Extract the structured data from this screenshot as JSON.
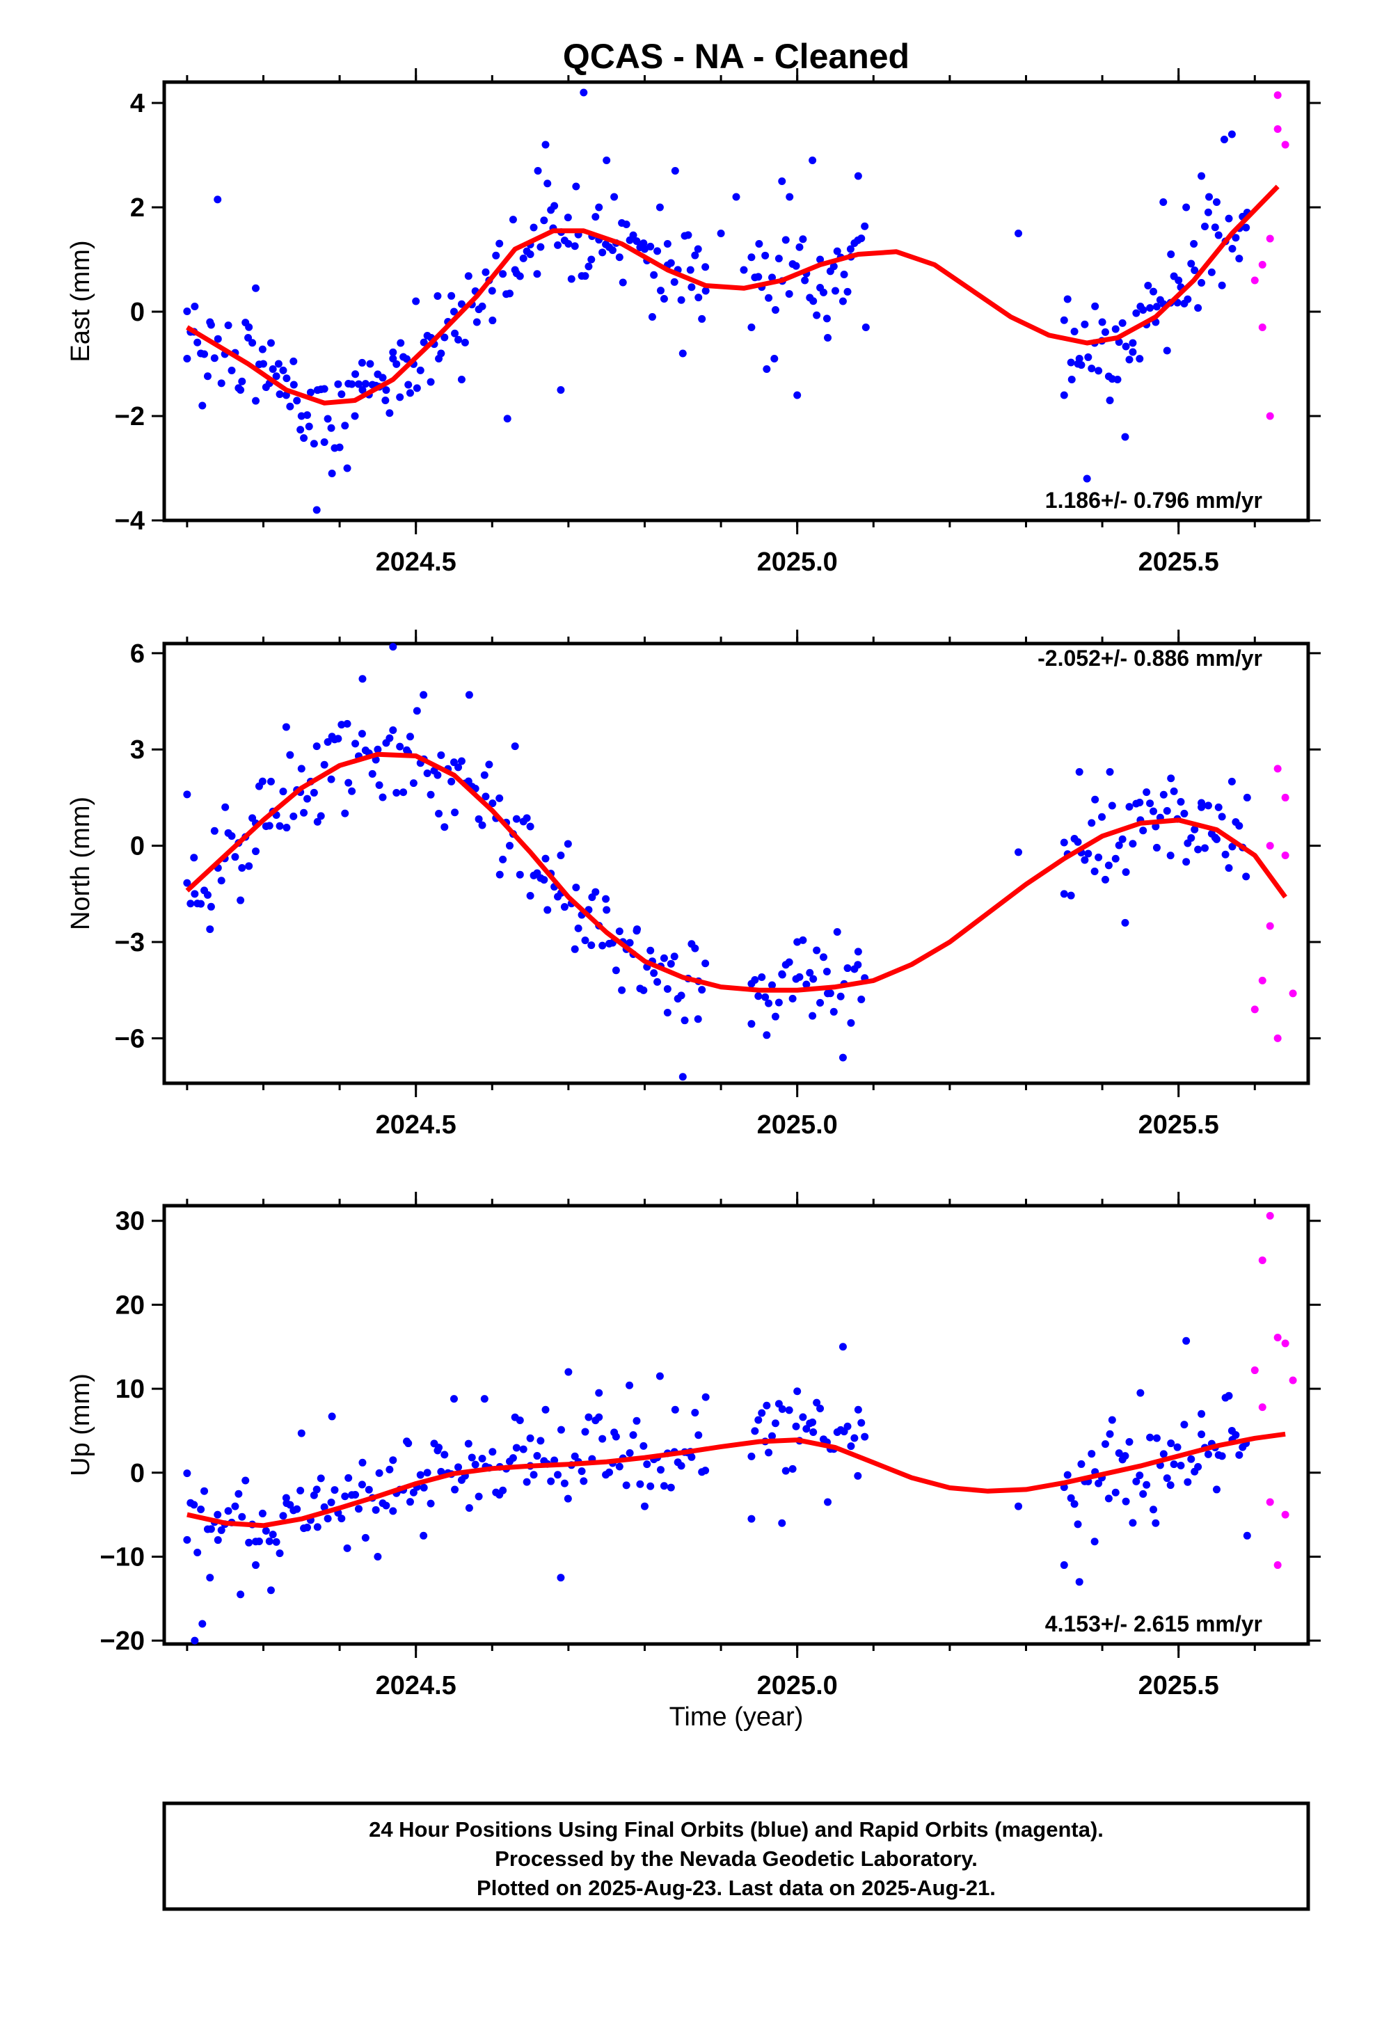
{
  "title": "QCAS  - NA - Cleaned",
  "colors": {
    "final": "#0000ff",
    "rapid": "#ff00ff",
    "fit": "#ff0000",
    "frame": "#000000"
  },
  "chart_data": [
    {
      "type": "scatter",
      "name": "east",
      "ylabel": "East (mm)",
      "xlabel": "",
      "xlim": [
        2024.17,
        2025.67
      ],
      "ylim": [
        -4,
        4.4
      ],
      "xticks": [
        2024.5,
        2025.0,
        2025.5
      ],
      "xtick_labels": [
        "2024.5",
        "2025.0",
        "2025.5"
      ],
      "yticks": [
        -4,
        -2,
        0,
        2,
        4
      ],
      "ytick_labels": [
        "−4",
        "−2",
        "0",
        "2",
        "4"
      ],
      "rate_text": "1.186+/- 0.796 mm/yr",
      "rate_position": "bottom-right",
      "fit": {
        "x": [
          2024.2,
          2024.28,
          2024.33,
          2024.38,
          2024.42,
          2024.47,
          2024.52,
          2024.58,
          2024.63,
          2024.68,
          2024.72,
          2024.77,
          2024.83,
          2024.88,
          2024.93,
          2024.98,
          2025.03,
          2025.08,
          2025.13,
          2025.18,
          2025.23,
          2025.28,
          2025.33,
          2025.38,
          2025.42,
          2025.47,
          2025.52,
          2025.57,
          2025.63
        ],
        "y": [
          -0.3,
          -1.0,
          -1.5,
          -1.75,
          -1.7,
          -1.3,
          -0.6,
          0.3,
          1.2,
          1.55,
          1.55,
          1.3,
          0.8,
          0.5,
          0.45,
          0.6,
          0.9,
          1.1,
          1.15,
          0.9,
          0.4,
          -0.1,
          -0.45,
          -0.6,
          -0.5,
          -0.1,
          0.6,
          1.5,
          2.4
        ]
      },
      "final_points": {
        "x": [
          2024.2,
          2024.21,
          2024.22,
          2024.23,
          2024.24,
          2024.27,
          2024.28,
          2024.29,
          2024.3,
          2024.31,
          2024.32,
          2024.33,
          2024.34,
          2024.35,
          2024.36,
          2024.37,
          2024.38,
          2024.39,
          2024.4,
          2024.41,
          2024.42,
          2024.43,
          2024.44,
          2024.45,
          2024.46,
          2024.47,
          2024.48,
          2024.49,
          2024.5,
          2024.52,
          2024.53,
          2024.55,
          2024.56,
          2024.58,
          2024.6,
          2024.62,
          2024.63,
          2024.65,
          2024.66,
          2024.67,
          2024.68,
          2024.69,
          2024.7,
          2024.71,
          2024.72,
          2024.73,
          2024.74,
          2024.75,
          2024.76,
          2024.77,
          2024.8,
          2024.81,
          2024.82,
          2024.83,
          2024.84,
          2024.85,
          2024.86,
          2024.87,
          2024.88,
          2024.9,
          2024.92,
          2024.93,
          2024.94,
          2024.95,
          2024.96,
          2024.97,
          2024.98,
          2024.99,
          2025.0,
          2025.01,
          2025.02,
          2025.03,
          2025.04,
          2025.05,
          2025.06,
          2025.07,
          2025.08,
          2025.09,
          2025.29,
          2025.35,
          2025.36,
          2025.37,
          2025.38,
          2025.39,
          2025.4,
          2025.41,
          2025.42,
          2025.43,
          2025.44,
          2025.45,
          2025.46,
          2025.47,
          2025.48,
          2025.49,
          2025.5,
          2025.51,
          2025.52,
          2025.53,
          2025.54,
          2025.55,
          2025.56,
          2025.57,
          2025.58,
          2025.59
        ],
        "y": [
          -0.9,
          0.1,
          -1.8,
          -0.2,
          2.15,
          -1.5,
          -0.5,
          0.45,
          -1.0,
          -0.6,
          -1.0,
          -1.6,
          -1.4,
          -2.0,
          -2.2,
          -3.8,
          -2.5,
          -3.1,
          -2.6,
          -3.0,
          -2.0,
          -1.5,
          -1.0,
          -1.2,
          -1.7,
          -0.9,
          -0.6,
          -1.4,
          0.2,
          -0.5,
          -0.9,
          0.0,
          -1.3,
          -0.2,
          0.4,
          -2.05,
          0.8,
          1.1,
          2.7,
          3.2,
          1.6,
          -1.5,
          1.3,
          2.4,
          4.2,
          1.0,
          2.0,
          2.9,
          2.2,
          1.7,
          1.2,
          -0.1,
          2.0,
          1.3,
          2.7,
          -0.8,
          0.8,
          1.2,
          0.4,
          1.5,
          2.2,
          0.8,
          -0.3,
          1.3,
          -1.1,
          -0.9,
          2.5,
          2.2,
          -1.6,
          0.6,
          2.9,
          1.0,
          -0.5,
          0.4,
          0.2,
          1.2,
          2.6,
          -0.3,
          1.5,
          -1.6,
          -1.3,
          -0.9,
          -3.2,
          -0.6,
          -0.2,
          -1.7,
          -1.3,
          -2.4,
          -0.6,
          0.1,
          0.5,
          -0.2,
          2.1,
          1.1,
          0.6,
          2.0,
          1.3,
          2.6,
          2.2,
          2.1,
          3.3,
          3.4,
          1.6,
          1.9
        ],
        "sparse": true
      },
      "rapid_points": {
        "x": [
          2025.6,
          2025.61,
          2025.61,
          2025.62,
          2025.62,
          2025.63,
          2025.63,
          2025.64
        ],
        "y": [
          0.6,
          0.9,
          -0.3,
          -2.0,
          1.4,
          4.15,
          3.5,
          3.2
        ]
      }
    },
    {
      "type": "scatter",
      "name": "north",
      "ylabel": "North (mm)",
      "xlabel": "",
      "xlim": [
        2024.17,
        2025.67
      ],
      "ylim": [
        -7.4,
        6.3
      ],
      "xticks": [
        2024.5,
        2025.0,
        2025.5
      ],
      "xtick_labels": [
        "2024.5",
        "2025.0",
        "2025.5"
      ],
      "yticks": [
        -6,
        -3,
        0,
        3,
        6
      ],
      "ytick_labels": [
        "−6",
        "−3",
        "0",
        "3",
        "6"
      ],
      "rate_text": "-2.052+/- 0.886 mm/yr",
      "rate_position": "top-right",
      "fit": {
        "x": [
          2024.2,
          2024.25,
          2024.3,
          2024.35,
          2024.4,
          2024.45,
          2024.5,
          2024.55,
          2024.6,
          2024.65,
          2024.7,
          2024.75,
          2024.8,
          2024.85,
          2024.9,
          2024.95,
          2025.0,
          2025.05,
          2025.1,
          2025.15,
          2025.2,
          2025.25,
          2025.3,
          2025.35,
          2025.4,
          2025.45,
          2025.5,
          2025.55,
          2025.6,
          2025.64
        ],
        "y": [
          -1.4,
          -0.3,
          0.8,
          1.8,
          2.5,
          2.85,
          2.8,
          2.2,
          1.1,
          -0.2,
          -1.6,
          -2.7,
          -3.6,
          -4.1,
          -4.4,
          -4.5,
          -4.5,
          -4.4,
          -4.2,
          -3.7,
          -3.0,
          -2.1,
          -1.2,
          -0.4,
          0.3,
          0.7,
          0.8,
          0.5,
          -0.3,
          -1.6
        ]
      },
      "final_points": {
        "x": [
          2024.2,
          2024.21,
          2024.23,
          2024.25,
          2024.27,
          2024.29,
          2024.31,
          2024.33,
          2024.35,
          2024.37,
          2024.39,
          2024.41,
          2024.43,
          2024.45,
          2024.47,
          2024.49,
          2024.51,
          2024.53,
          2024.55,
          2024.57,
          2024.59,
          2024.61,
          2024.63,
          2024.65,
          2024.67,
          2024.69,
          2024.71,
          2024.73,
          2024.75,
          2024.77,
          2024.79,
          2024.81,
          2024.83,
          2024.85,
          2024.87,
          2024.94,
          2024.96,
          2024.98,
          2025.0,
          2025.02,
          2025.04,
          2025.06,
          2025.08,
          2025.29,
          2025.35,
          2025.37,
          2025.39,
          2025.41,
          2025.43,
          2025.45,
          2025.47,
          2025.49,
          2025.51,
          2025.53,
          2025.55,
          2025.57,
          2025.59
        ],
        "y": [
          1.6,
          -1.5,
          -2.6,
          1.2,
          -1.7,
          0.7,
          2.0,
          3.7,
          2.4,
          3.1,
          3.4,
          3.8,
          5.2,
          3.0,
          6.2,
          2.9,
          4.7,
          1.0,
          2.6,
          4.7,
          2.2,
          -0.9,
          3.1,
          0.6,
          -0.4,
          -0.3,
          -1.3,
          -3.1,
          -2.0,
          -4.5,
          -2.6,
          -3.6,
          -5.2,
          -7.2,
          -5.4,
          -4.3,
          -5.9,
          -4.0,
          -3.0,
          -5.3,
          -4.6,
          -6.6,
          -3.3,
          -0.2,
          0.1,
          2.3,
          -0.8,
          2.3,
          -2.4,
          0.8,
          0.6,
          2.1,
          -0.5,
          1.2,
          0.2,
          2.0,
          1.5
        ],
        "sparse": true
      },
      "rapid_points": {
        "x": [
          2025.6,
          2025.61,
          2025.62,
          2025.62,
          2025.63,
          2025.63,
          2025.64,
          2025.64,
          2025.65
        ],
        "y": [
          -5.1,
          -4.2,
          -2.5,
          0.0,
          2.4,
          -6.0,
          1.5,
          -0.3,
          -4.6
        ]
      }
    },
    {
      "type": "scatter",
      "name": "up",
      "ylabel": "Up (mm)",
      "xlabel": "Time (year)",
      "xlim": [
        2024.17,
        2025.67
      ],
      "ylim": [
        -20.4,
        31.8
      ],
      "xticks": [
        2024.5,
        2025.0,
        2025.5
      ],
      "xtick_labels": [
        "2024.5",
        "2025.0",
        "2025.5"
      ],
      "yticks": [
        -20,
        -10,
        0,
        10,
        20,
        30
      ],
      "ytick_labels": [
        "−20",
        "−10",
        "0",
        "10",
        "20",
        "30"
      ],
      "rate_text": "4.153+/- 2.615 mm/yr",
      "rate_position": "bottom-right",
      "fit": {
        "x": [
          2024.2,
          2024.25,
          2024.3,
          2024.35,
          2024.4,
          2024.45,
          2024.5,
          2024.55,
          2024.6,
          2024.65,
          2024.7,
          2024.75,
          2024.8,
          2024.85,
          2024.9,
          2024.95,
          2025.0,
          2025.05,
          2025.1,
          2025.15,
          2025.2,
          2025.25,
          2025.3,
          2025.35,
          2025.4,
          2025.45,
          2025.5,
          2025.55,
          2025.6,
          2025.64
        ],
        "y": [
          -5.0,
          -6.0,
          -6.3,
          -5.5,
          -4.2,
          -2.8,
          -1.3,
          -0.1,
          0.5,
          0.8,
          1.0,
          1.3,
          1.8,
          2.4,
          3.1,
          3.7,
          3.9,
          3.0,
          1.2,
          -0.6,
          -1.8,
          -2.2,
          -2.0,
          -1.2,
          -0.2,
          0.8,
          2.0,
          3.2,
          4.1,
          4.6
        ]
      },
      "final_points": {
        "x": [
          2024.2,
          2024.21,
          2024.22,
          2024.23,
          2024.24,
          2024.27,
          2024.29,
          2024.31,
          2024.33,
          2024.35,
          2024.37,
          2024.39,
          2024.41,
          2024.43,
          2024.45,
          2024.47,
          2024.49,
          2024.51,
          2024.53,
          2024.55,
          2024.57,
          2024.59,
          2024.61,
          2024.63,
          2024.65,
          2024.67,
          2024.69,
          2024.7,
          2024.72,
          2024.74,
          2024.76,
          2024.78,
          2024.8,
          2024.82,
          2024.84,
          2024.86,
          2024.88,
          2024.94,
          2024.96,
          2024.98,
          2025.0,
          2025.02,
          2025.04,
          2025.06,
          2025.08,
          2025.29,
          2025.35,
          2025.37,
          2025.39,
          2025.41,
          2025.43,
          2025.45,
          2025.47,
          2025.49,
          2025.51,
          2025.53,
          2025.55,
          2025.57,
          2025.59
        ],
        "y": [
          -8.0,
          -20.0,
          -18.0,
          -12.5,
          -5.0,
          -14.5,
          -11.0,
          -14.0,
          -3.0,
          4.7,
          -2.0,
          6.7,
          -9.0,
          1.2,
          -10.0,
          1.5,
          3.5,
          -7.5,
          3.0,
          8.8,
          -4.2,
          8.8,
          0.7,
          6.6,
          4.1,
          7.5,
          -12.5,
          12.0,
          -1.0,
          9.5,
          4.8,
          10.4,
          -4.0,
          11.5,
          7.5,
          2.5,
          9.0,
          -5.5,
          8.0,
          -6.0,
          9.7,
          6.0,
          -3.5,
          15.0,
          7.5,
          -4.0,
          -11.0,
          -13.0,
          -8.2,
          4.6,
          2.0,
          9.5,
          -6.0,
          3.5,
          15.7,
          7.0,
          -2.0,
          5.0,
          -7.5
        ],
        "sparse": true
      },
      "rapid_points": {
        "x": [
          2025.6,
          2025.61,
          2025.61,
          2025.62,
          2025.62,
          2025.63,
          2025.63,
          2025.64,
          2025.64,
          2025.65
        ],
        "y": [
          12.2,
          25.3,
          7.8,
          -3.5,
          30.6,
          -11.0,
          16.1,
          -5.0,
          15.4,
          11.0
        ]
      }
    }
  ],
  "footer": {
    "line1": "24 Hour Positions Using Final Orbits (blue) and Rapid Orbits (magenta).",
    "line2": "Processed by the Nevada Geodetic Laboratory.",
    "line3": "Plotted on 2025-Aug-23. Last data on 2025-Aug-21."
  }
}
